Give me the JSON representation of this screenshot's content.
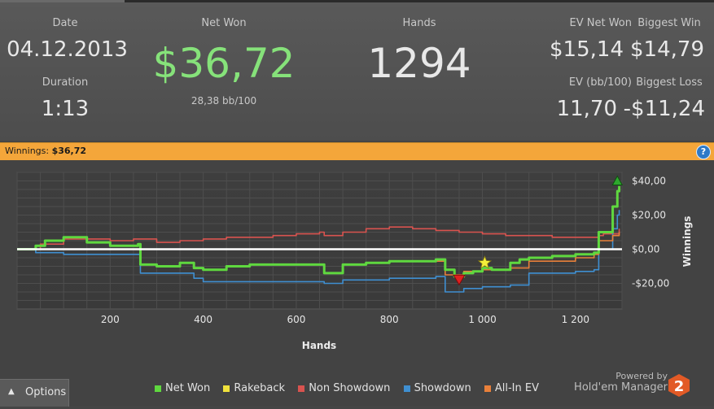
{
  "stats": {
    "date_label": "Date",
    "date_value": "04.12.2013",
    "duration_label": "Duration",
    "duration_value": "1:13",
    "net_won_label": "Net Won",
    "net_won_value": "$36,72",
    "bb_per_100": "28,38 bb/100",
    "hands_label": "Hands",
    "hands_value": "1294",
    "ev_net_won_label": "EV Net Won",
    "ev_net_won_value": "$15,14",
    "biggest_win_label": "Biggest Win",
    "biggest_win_value": "$14,79",
    "ev_bb_label": "EV (bb/100)",
    "ev_bb_value": "11,70",
    "biggest_loss_label": "Biggest Loss",
    "biggest_loss_value": "-$11,24"
  },
  "winnings_bar": {
    "label": "Winnings:",
    "value": "$36,72",
    "help_icon": "?"
  },
  "options_button": {
    "label": "Options",
    "icon": "chevron-up-icon"
  },
  "branding": {
    "powered_by": "Powered by",
    "product": "Hold'em Manager",
    "logo_text": "2"
  },
  "colors": {
    "net_won": "#5fd83f",
    "rakeback": "#f0e23c",
    "non_showdown": "#d9534f",
    "showdown": "#3f8fd1",
    "allin_ev": "#e8803a",
    "zero_line": "#ffffff",
    "net_won_value_text": "#86e27a",
    "win_bar": "#f4a63a"
  },
  "chart_data": {
    "type": "line",
    "xlabel": "Hands",
    "ylabel": "Winnings",
    "xlim": [
      0,
      1300
    ],
    "ylim": [
      -35,
      45
    ],
    "x_ticks": [
      200,
      400,
      600,
      800,
      1000,
      1200
    ],
    "x_tick_labels": [
      "200",
      "400",
      "600",
      "800",
      "1 000",
      "1 200"
    ],
    "y_ticks": [
      40,
      20,
      0,
      -20
    ],
    "y_tick_labels": [
      "$40,00",
      "$20,00",
      "$0,00",
      "-$20,00"
    ],
    "legend_position": "bottom",
    "grid": true,
    "series": [
      {
        "name": "Net Won",
        "color_key": "net_won",
        "x": [
          0,
          40,
          60,
          100,
          150,
          200,
          260,
          265,
          300,
          350,
          380,
          400,
          450,
          500,
          550,
          600,
          650,
          660,
          700,
          750,
          800,
          850,
          890,
          900,
          920,
          940,
          960,
          980,
          1000,
          1020,
          1050,
          1060,
          1080,
          1100,
          1150,
          1200,
          1240,
          1250,
          1260,
          1270,
          1280,
          1290,
          1294
        ],
        "y": [
          0,
          2,
          5,
          7,
          4,
          2,
          3,
          -9,
          -10,
          -8,
          -11,
          -12,
          -10,
          -9,
          -9,
          -9,
          -9,
          -14,
          -9,
          -8,
          -7,
          -7,
          -7,
          -6,
          -12,
          -16,
          -14,
          -13,
          -11,
          -12,
          -12,
          -8,
          -6,
          -5,
          -4,
          -3,
          -2,
          10,
          10,
          10,
          25,
          34,
          37
        ]
      },
      {
        "name": "Rakeback",
        "color_key": "rakeback",
        "x": [],
        "y": []
      },
      {
        "name": "Non Showdown",
        "color_key": "non_showdown",
        "x": [
          0,
          50,
          100,
          150,
          200,
          250,
          300,
          350,
          400,
          450,
          500,
          550,
          600,
          650,
          660,
          700,
          750,
          800,
          850,
          900,
          950,
          1000,
          1050,
          1100,
          1150,
          1200,
          1250,
          1260,
          1294
        ],
        "y": [
          0,
          3,
          6,
          6,
          5,
          6,
          4,
          5,
          6,
          7,
          7,
          8,
          9,
          10,
          8,
          10,
          12,
          13,
          12,
          11,
          10,
          9,
          8,
          8,
          7,
          7,
          8,
          9,
          12
        ]
      },
      {
        "name": "Showdown",
        "color_key": "showdown",
        "x": [
          0,
          40,
          100,
          200,
          260,
          265,
          350,
          380,
          400,
          500,
          600,
          650,
          660,
          700,
          800,
          890,
          900,
          920,
          960,
          1000,
          1060,
          1100,
          1200,
          1240,
          1250,
          1280,
          1290,
          1294
        ],
        "y": [
          0,
          -2,
          -3,
          -3,
          -3,
          -14,
          -14,
          -17,
          -19,
          -19,
          -19,
          -19,
          -20,
          -18,
          -17,
          -17,
          -16,
          -25,
          -23,
          -22,
          -21,
          -14,
          -13,
          -12,
          0,
          12,
          20,
          23
        ]
      },
      {
        "name": "All-In EV",
        "color_key": "allin_ev",
        "x": [
          900,
          920,
          960,
          1000,
          1060,
          1100,
          1200,
          1240,
          1250,
          1280,
          1294
        ],
        "y": [
          -7,
          -15,
          -13,
          -12,
          -11,
          -7,
          -5,
          -3,
          5,
          8,
          10
        ]
      }
    ],
    "markers": [
      {
        "type": "biggest-win",
        "icon": "green-triangle-up-icon",
        "x": 1290,
        "y": 40
      },
      {
        "type": "rakeback",
        "icon": "yellow-star-icon",
        "x": 1005,
        "y": -8
      },
      {
        "type": "biggest-loss",
        "icon": "red-triangle-down-icon",
        "x": 950,
        "y": -18
      }
    ]
  }
}
